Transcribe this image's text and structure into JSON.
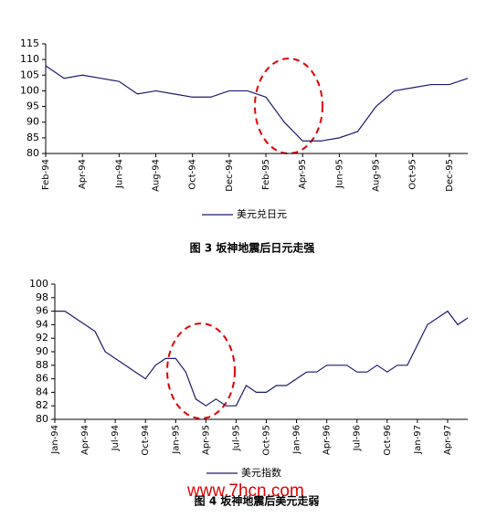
{
  "chart_data": [
    {
      "type": "line",
      "title": "图 3 坂神地震后日元走强",
      "categories": [
        "Feb-94",
        null,
        "Apr-94",
        null,
        "Jun-94",
        null,
        "Aug-94",
        null,
        "Oct-94",
        null,
        "Dec-94",
        null,
        "Feb-95",
        null,
        "Apr-95",
        null,
        "Jun-95",
        null,
        "Aug-95",
        null,
        "Oct-95",
        null,
        "Dec-95",
        null
      ],
      "series": [
        {
          "name": "美元兑日元",
          "color": "#1a1a6e",
          "values": [
            108,
            104,
            105,
            104,
            103,
            99,
            100,
            99,
            98,
            98,
            100,
            100,
            98,
            90,
            84,
            84,
            85,
            87,
            95,
            100,
            101,
            102,
            102,
            104
          ]
        }
      ],
      "ylim": [
        80,
        115
      ],
      "yticks": [
        80,
        85,
        90,
        95,
        100,
        105,
        110,
        115
      ]
    },
    {
      "type": "line",
      "title": "图 4 坂神地震后美元走弱",
      "categories": [
        "Jan-94",
        null,
        null,
        "Apr-94",
        null,
        null,
        "Jul-94",
        null,
        null,
        "Oct-94",
        null,
        null,
        "Jan-95",
        null,
        null,
        "Apr-95",
        null,
        null,
        "Jul-95",
        null,
        null,
        "Oct-95",
        null,
        null,
        "Jan-96",
        null,
        null,
        "Apr-96",
        null,
        null,
        "Jul-96",
        null,
        null,
        "Oct-96",
        null,
        null,
        "Jan-97",
        null,
        null,
        "Apr-97",
        null,
        null
      ],
      "series": [
        {
          "name": "美元指数",
          "color": "#1a1a6e",
          "values": [
            96,
            96,
            95,
            94,
            93,
            90,
            89,
            88,
            87,
            86,
            88,
            89,
            89,
            87,
            83,
            82,
            83,
            82,
            82,
            85,
            84,
            84,
            85,
            85,
            86,
            87,
            87,
            88,
            88,
            88,
            87,
            87,
            88,
            87,
            88,
            88,
            91,
            94,
            95,
            96,
            94,
            95
          ]
        }
      ],
      "ylim": [
        80,
        100
      ],
      "yticks": [
        80,
        82,
        84,
        86,
        88,
        90,
        92,
        94,
        96,
        98,
        100
      ]
    }
  ],
  "watermark": "www.7hcn.com"
}
